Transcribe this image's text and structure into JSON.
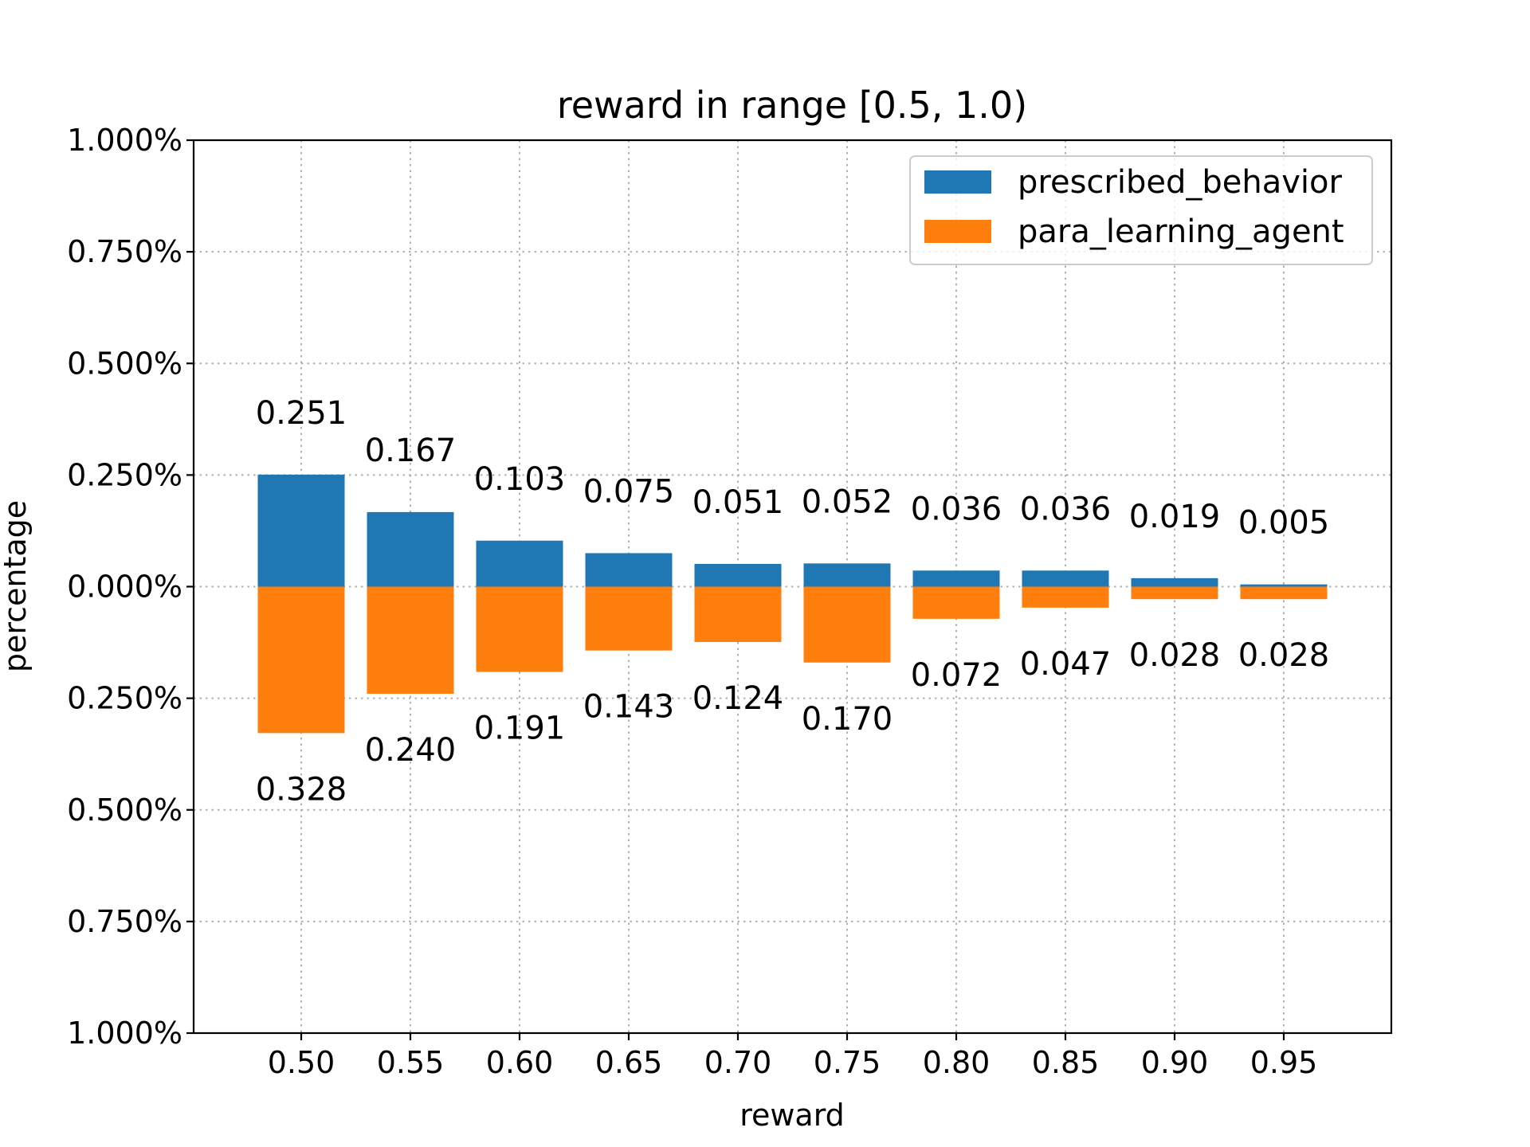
{
  "chart_data": {
    "type": "bar",
    "title": "reward in range [0.5, 1.0)",
    "xlabel": "reward",
    "ylabel": "percentage",
    "categories": [
      "0.50",
      "0.55",
      "0.60",
      "0.65",
      "0.70",
      "0.75",
      "0.80",
      "0.85",
      "0.90",
      "0.95"
    ],
    "series": [
      {
        "name": "prescribed_behavior",
        "color": "#1f77b4",
        "direction": "up",
        "values": [
          0.251,
          0.167,
          0.103,
          0.075,
          0.051,
          0.052,
          0.036,
          0.036,
          0.019,
          0.005
        ],
        "labels": [
          "0.251",
          "0.167",
          "0.103",
          "0.075",
          "0.051",
          "0.052",
          "0.036",
          "0.036",
          "0.019",
          "0.005"
        ]
      },
      {
        "name": "para_learning_agent",
        "color": "#ff7f0e",
        "direction": "down",
        "values": [
          0.328,
          0.24,
          0.191,
          0.143,
          0.124,
          0.17,
          0.072,
          0.047,
          0.028,
          0.028
        ],
        "labels": [
          "0.328",
          "0.240",
          "0.191",
          "0.143",
          "0.124",
          "0.170",
          "0.072",
          "0.047",
          "0.028",
          "0.028"
        ]
      }
    ],
    "ylim": [
      -1.0,
      1.0
    ],
    "yticks": [
      {
        "value": 1.0,
        "label": "1.000%"
      },
      {
        "value": 0.75,
        "label": "0.750%"
      },
      {
        "value": 0.5,
        "label": "0.500%"
      },
      {
        "value": 0.25,
        "label": "0.250%"
      },
      {
        "value": 0.0,
        "label": "0.000%"
      },
      {
        "value": -0.25,
        "label": "0.250%"
      },
      {
        "value": -0.5,
        "label": "0.500%"
      },
      {
        "value": -0.75,
        "label": "0.750%"
      },
      {
        "value": -1.0,
        "label": "1.000%"
      }
    ],
    "grid": true,
    "legend_position": "top-right"
  }
}
